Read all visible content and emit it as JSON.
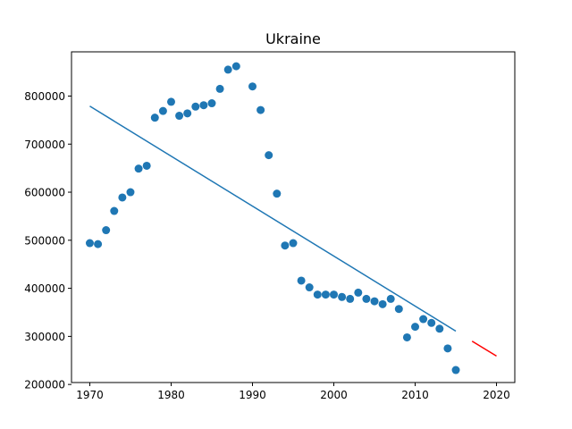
{
  "chart_data": {
    "type": "scatter",
    "title": "Ukraine",
    "xlabel": "",
    "ylabel": "",
    "xlim": [
      1967.75,
      2022.25
    ],
    "ylim": [
      204000,
      892000
    ],
    "xticks": [
      1970,
      1980,
      1990,
      2000,
      2010,
      2020
    ],
    "yticks": [
      200000,
      300000,
      400000,
      500000,
      600000,
      700000,
      800000
    ],
    "grid": false,
    "legend": "none",
    "series": [
      {
        "kind": "scatter",
        "color": "#1f77b4",
        "points": [
          [
            1970,
            494000
          ],
          [
            1971,
            492000
          ],
          [
            1972,
            521000
          ],
          [
            1973,
            561000
          ],
          [
            1974,
            589000
          ],
          [
            1975,
            600000
          ],
          [
            1976,
            649000
          ],
          [
            1977,
            655000
          ],
          [
            1978,
            755000
          ],
          [
            1979,
            769000
          ],
          [
            1980,
            788000
          ],
          [
            1981,
            759000
          ],
          [
            1982,
            764000
          ],
          [
            1983,
            778000
          ],
          [
            1984,
            781000
          ],
          [
            1985,
            785000
          ],
          [
            1986,
            815000
          ],
          [
            1987,
            855000
          ],
          [
            1988,
            862000
          ],
          [
            1990,
            820000
          ],
          [
            1991,
            771000
          ],
          [
            1992,
            677000
          ],
          [
            1993,
            597000
          ],
          [
            1994,
            489000
          ],
          [
            1995,
            494000
          ],
          [
            1996,
            416000
          ],
          [
            1997,
            402000
          ],
          [
            1998,
            387000
          ],
          [
            1999,
            387000
          ],
          [
            2000,
            387000
          ],
          [
            2001,
            382000
          ],
          [
            2002,
            378000
          ],
          [
            2003,
            391000
          ],
          [
            2004,
            378000
          ],
          [
            2005,
            373000
          ],
          [
            2006,
            367000
          ],
          [
            2007,
            378000
          ],
          [
            2008,
            357000
          ],
          [
            2009,
            298000
          ],
          [
            2010,
            320000
          ],
          [
            2011,
            336000
          ],
          [
            2012,
            328000
          ],
          [
            2013,
            316000
          ],
          [
            2014,
            275000
          ],
          [
            2015,
            230000
          ]
        ]
      },
      {
        "kind": "line",
        "color": "#1f77b4",
        "points": [
          [
            1970,
            779000
          ],
          [
            2015,
            311000
          ]
        ]
      },
      {
        "kind": "line",
        "color": "#ff0000",
        "points": [
          [
            2017,
            290000
          ],
          [
            2020,
            259000
          ]
        ]
      }
    ]
  }
}
